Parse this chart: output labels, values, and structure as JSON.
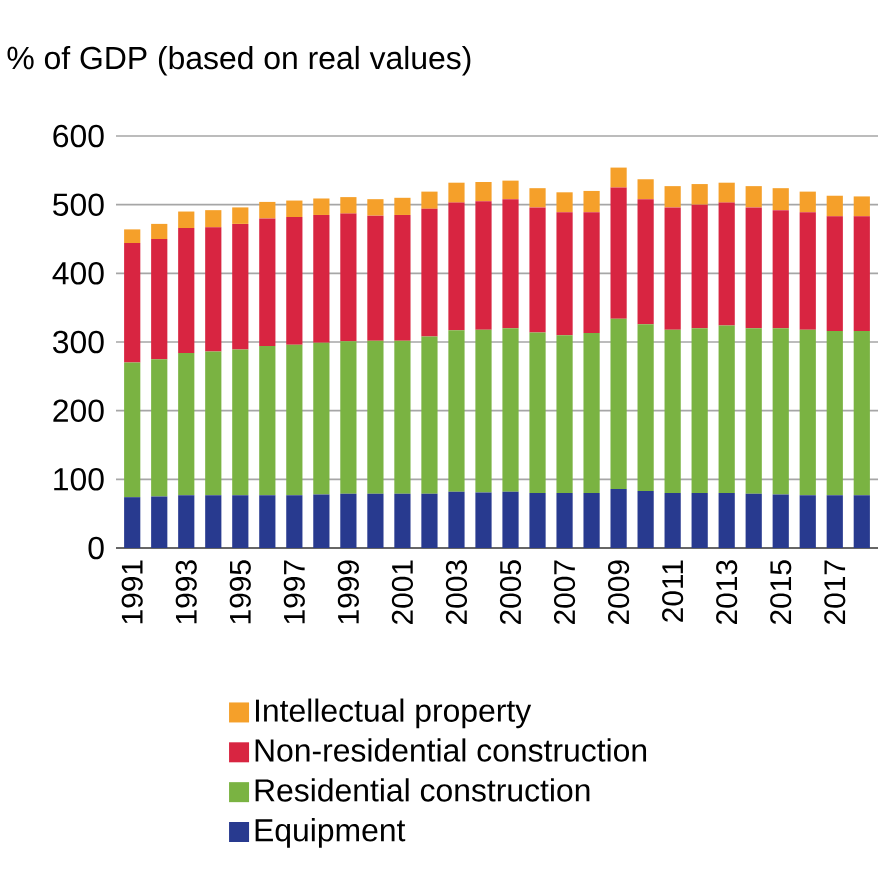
{
  "chart_data": {
    "type": "bar",
    "stacked": true,
    "ylabel": "% of GDP (based on real values)",
    "categories": [
      "1991",
      null,
      "1993",
      null,
      "1995",
      null,
      "1997",
      null,
      "1999",
      null,
      "2001",
      null,
      "2003",
      null,
      "2005",
      null,
      "2007",
      null,
      "2009",
      null,
      "2011",
      null,
      "2013",
      null,
      "2015",
      null,
      "2017",
      null
    ],
    "series": [
      {
        "name": "Equipment",
        "color": "#283a8f",
        "values": [
          74,
          75,
          77,
          77,
          77,
          77,
          77,
          78,
          79,
          79,
          79,
          79,
          82,
          81,
          82,
          80,
          80,
          80,
          86,
          83,
          80,
          80,
          80,
          79,
          78,
          77,
          77,
          77
        ]
      },
      {
        "name": "Residential construction",
        "color": "#7ab342",
        "values": [
          196,
          200,
          207,
          209,
          212,
          217,
          219,
          221,
          222,
          223,
          223,
          229,
          235,
          237,
          238,
          234,
          230,
          233,
          248,
          243,
          238,
          240,
          244,
          241,
          242,
          241,
          239,
          239
        ]
      },
      {
        "name": "Non-residential construction",
        "color": "#d82541",
        "values": [
          174,
          175,
          182,
          181,
          183,
          186,
          186,
          186,
          186,
          182,
          183,
          186,
          186,
          187,
          188,
          182,
          179,
          176,
          191,
          182,
          178,
          180,
          179,
          176,
          172,
          171,
          167,
          167
        ]
      },
      {
        "name": "Intellectual property",
        "color": "#f5a02a",
        "values": [
          20,
          22,
          24,
          25,
          24,
          24,
          24,
          24,
          24,
          24,
          25,
          25,
          29,
          28,
          27,
          28,
          29,
          31,
          29,
          29,
          31,
          30,
          29,
          31,
          32,
          30,
          30,
          29
        ]
      }
    ],
    "ylim": [
      0,
      600
    ],
    "yticks": [
      0,
      100,
      200,
      300,
      400,
      500,
      600
    ],
    "grid": "y",
    "legend": "bottom"
  }
}
